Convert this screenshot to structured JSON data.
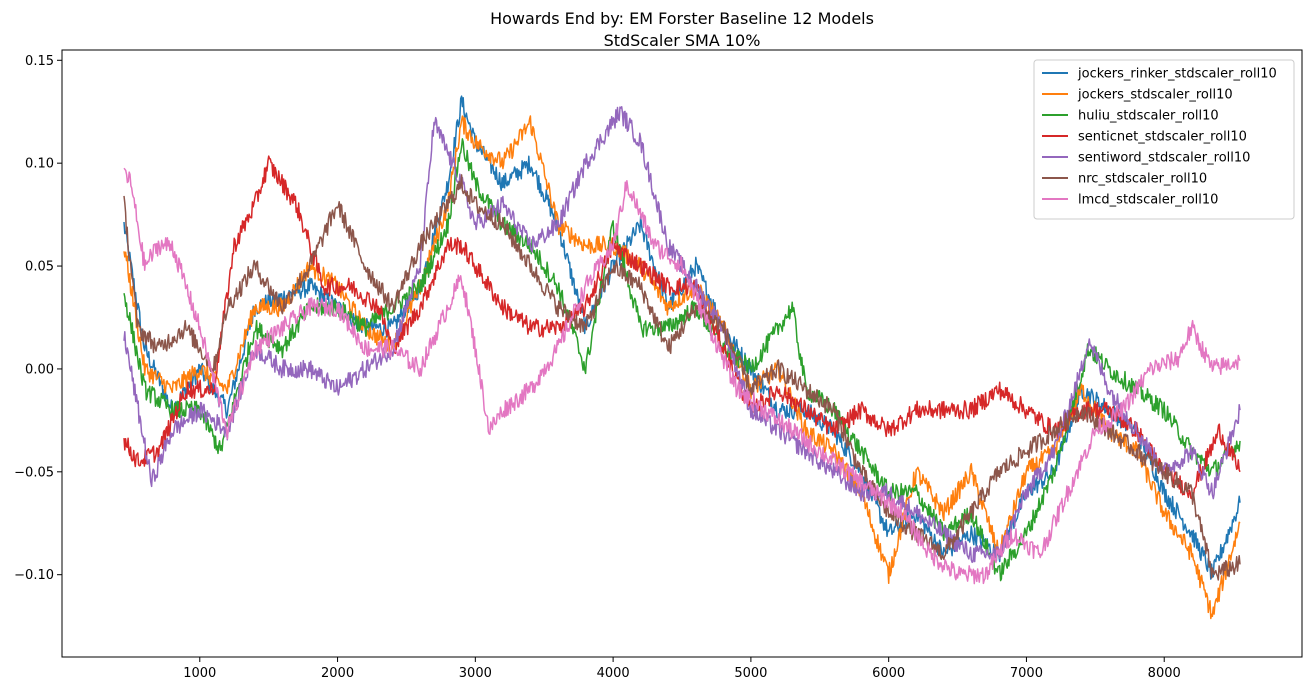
{
  "chart_data": {
    "type": "line",
    "title": "Howards End by: EM Forster Baseline 12 Models",
    "subtitle": "StdScaler SMA 10%",
    "xlabel": "",
    "ylabel": "",
    "xlim": [
      0,
      9000
    ],
    "ylim": [
      -0.14,
      0.155
    ],
    "x_ticks": [
      1000,
      2000,
      3000,
      4000,
      5000,
      6000,
      7000,
      8000
    ],
    "x_tick_labels": [
      "1000",
      "2000",
      "3000",
      "4000",
      "5000",
      "6000",
      "7000",
      "8000"
    ],
    "y_ticks": [
      -0.1,
      -0.05,
      0.0,
      0.05,
      0.1,
      0.15
    ],
    "y_tick_labels": [
      "−0.10",
      "−0.05",
      "0.00",
      "0.05",
      "0.10",
      "0.15"
    ],
    "grid": false,
    "legend_position": "top-right",
    "series": [
      {
        "name": "jockers_rinker_stdscaler_roll10",
        "color": "#1f77b4",
        "x": [
          450,
          600,
          800,
          1000,
          1200,
          1400,
          1600,
          1800,
          2000,
          2200,
          2400,
          2600,
          2800,
          2900,
          3000,
          3200,
          3400,
          3600,
          3800,
          4000,
          4200,
          4400,
          4600,
          4800,
          5000,
          5200,
          5400,
          5600,
          5800,
          6000,
          6200,
          6400,
          6600,
          6800,
          7000,
          7200,
          7400,
          7600,
          7800,
          8000,
          8200,
          8350,
          8550
        ],
        "y": [
          0.07,
          0.01,
          -0.02,
          0.0,
          -0.02,
          0.03,
          0.035,
          0.04,
          0.03,
          0.02,
          0.02,
          0.04,
          0.09,
          0.13,
          0.11,
          0.09,
          0.1,
          0.07,
          0.02,
          0.05,
          0.07,
          0.03,
          0.05,
          0.02,
          0.0,
          -0.02,
          -0.02,
          -0.03,
          -0.05,
          -0.08,
          -0.07,
          -0.09,
          -0.08,
          -0.09,
          -0.06,
          -0.05,
          -0.01,
          -0.02,
          -0.03,
          -0.06,
          -0.08,
          -0.1,
          -0.065
        ]
      },
      {
        "name": "jockers_stdscaler_roll10",
        "color": "#ff7f0e",
        "x": [
          450,
          600,
          800,
          1000,
          1200,
          1400,
          1600,
          1800,
          2000,
          2200,
          2400,
          2600,
          2800,
          2900,
          3000,
          3200,
          3400,
          3600,
          3800,
          4000,
          4200,
          4400,
          4600,
          4800,
          5000,
          5200,
          5400,
          5600,
          5800,
          6000,
          6200,
          6400,
          6600,
          6800,
          7000,
          7200,
          7400,
          7600,
          7800,
          8000,
          8200,
          8350,
          8550
        ],
        "y": [
          0.06,
          0.0,
          -0.01,
          0.0,
          -0.01,
          0.03,
          0.03,
          0.05,
          0.04,
          0.02,
          0.01,
          0.04,
          0.08,
          0.12,
          0.11,
          0.1,
          0.12,
          0.07,
          0.06,
          0.06,
          0.05,
          0.03,
          0.04,
          0.02,
          -0.01,
          0.0,
          -0.03,
          -0.04,
          -0.06,
          -0.1,
          -0.05,
          -0.07,
          -0.05,
          -0.09,
          -0.05,
          -0.04,
          -0.01,
          -0.03,
          -0.04,
          -0.07,
          -0.09,
          -0.12,
          -0.075
        ]
      },
      {
        "name": "huliu_stdscaler_roll10",
        "color": "#2ca02c",
        "x": [
          450,
          600,
          800,
          1000,
          1150,
          1400,
          1600,
          1800,
          2000,
          2200,
          2400,
          2600,
          2800,
          2900,
          3000,
          3200,
          3400,
          3600,
          3800,
          4000,
          4200,
          4400,
          4600,
          4800,
          5000,
          5300,
          5400,
          5600,
          5800,
          6000,
          6200,
          6400,
          6600,
          6800,
          7000,
          7200,
          7450,
          7600,
          7800,
          8000,
          8200,
          8350,
          8550
        ],
        "y": [
          0.037,
          -0.01,
          -0.02,
          -0.02,
          -0.04,
          0.02,
          0.01,
          0.03,
          0.03,
          0.02,
          0.03,
          0.04,
          0.07,
          0.11,
          0.09,
          0.07,
          0.06,
          0.04,
          0.0,
          0.07,
          0.02,
          0.02,
          0.03,
          0.01,
          0.0,
          0.03,
          -0.01,
          -0.02,
          -0.04,
          -0.06,
          -0.06,
          -0.08,
          -0.07,
          -0.1,
          -0.08,
          -0.05,
          0.01,
          0.0,
          -0.01,
          -0.02,
          -0.04,
          -0.05,
          -0.035
        ]
      },
      {
        "name": "senticnet_stdscaler_roll10",
        "color": "#d62728",
        "x": [
          450,
          550,
          700,
          900,
          1100,
          1250,
          1400,
          1500,
          1700,
          1900,
          2100,
          2300,
          2400,
          2600,
          2800,
          2900,
          3000,
          3200,
          3400,
          3600,
          3800,
          4000,
          4200,
          4400,
          4600,
          4800,
          5000,
          5200,
          5400,
          5600,
          5800,
          6000,
          6200,
          6400,
          6600,
          6800,
          7000,
          7200,
          7400,
          7600,
          7800,
          8000,
          8200,
          8400,
          8550
        ],
        "y": [
          -0.035,
          -0.045,
          -0.04,
          -0.01,
          -0.01,
          0.06,
          0.08,
          0.1,
          0.08,
          0.04,
          0.04,
          0.03,
          0.01,
          0.03,
          0.06,
          0.06,
          0.05,
          0.03,
          0.02,
          0.02,
          0.03,
          0.06,
          0.05,
          0.04,
          0.04,
          0.01,
          -0.02,
          -0.01,
          -0.02,
          -0.03,
          -0.02,
          -0.03,
          -0.02,
          -0.02,
          -0.02,
          -0.01,
          -0.02,
          -0.03,
          -0.02,
          -0.02,
          -0.03,
          -0.05,
          -0.06,
          -0.03,
          -0.05
        ]
      },
      {
        "name": "sentiword_stdscaler_roll10",
        "color": "#9467bd",
        "x": [
          450,
          650,
          800,
          1000,
          1200,
          1400,
          1600,
          1800,
          2000,
          2200,
          2400,
          2600,
          2700,
          2900,
          3000,
          3200,
          3400,
          3600,
          3800,
          3900,
          4050,
          4200,
          4400,
          4600,
          4800,
          5000,
          5200,
          5400,
          5600,
          5800,
          6000,
          6200,
          6400,
          6600,
          6800,
          7000,
          7200,
          7400,
          7450,
          7600,
          7800,
          8000,
          8200,
          8350,
          8550
        ],
        "y": [
          0.017,
          -0.055,
          -0.03,
          -0.02,
          -0.03,
          0.01,
          0.0,
          0.0,
          -0.01,
          0.0,
          0.01,
          0.05,
          0.12,
          0.09,
          0.07,
          0.08,
          0.06,
          0.07,
          0.1,
          0.11,
          0.125,
          0.11,
          0.06,
          0.04,
          0.02,
          -0.02,
          -0.03,
          -0.04,
          -0.05,
          -0.06,
          -0.06,
          -0.07,
          -0.08,
          -0.09,
          -0.09,
          -0.06,
          -0.04,
          0.0,
          0.015,
          -0.01,
          -0.03,
          -0.05,
          -0.04,
          -0.06,
          -0.02
        ]
      },
      {
        "name": "nrc_stdscaler_roll10",
        "color": "#8c564b",
        "x": [
          450,
          550,
          700,
          900,
          1100,
          1200,
          1400,
          1600,
          1800,
          2000,
          2200,
          2400,
          2600,
          2800,
          2900,
          3000,
          3200,
          3400,
          3600,
          3800,
          4000,
          4200,
          4400,
          4600,
          4800,
          5000,
          5200,
          5400,
          5600,
          5800,
          6000,
          6200,
          6400,
          6600,
          6800,
          7000,
          7200,
          7400,
          7600,
          7800,
          8000,
          8200,
          8350,
          8550
        ],
        "y": [
          0.08,
          0.02,
          0.01,
          0.02,
          0.0,
          0.03,
          0.05,
          0.03,
          0.05,
          0.08,
          0.05,
          0.03,
          0.06,
          0.08,
          0.09,
          0.08,
          0.07,
          0.05,
          0.03,
          0.02,
          0.05,
          0.04,
          0.01,
          0.03,
          0.02,
          -0.01,
          0.0,
          -0.01,
          -0.02,
          -0.05,
          -0.07,
          -0.08,
          -0.09,
          -0.07,
          -0.05,
          -0.04,
          -0.03,
          -0.02,
          -0.03,
          -0.04,
          -0.05,
          -0.06,
          -0.1,
          -0.095
        ]
      },
      {
        "name": "lmcd_stdscaler_roll10",
        "color": "#e377c2",
        "x": [
          450,
          500,
          600,
          700,
          800,
          1000,
          1200,
          1400,
          1600,
          1800,
          2000,
          2200,
          2400,
          2600,
          2800,
          2900,
          3000,
          3100,
          3200,
          3400,
          3600,
          3800,
          4000,
          4100,
          4300,
          4500,
          4700,
          4900,
          5100,
          5300,
          5500,
          5700,
          5900,
          6100,
          6300,
          6500,
          6700,
          6900,
          7100,
          7300,
          7500,
          7700,
          7900,
          8100,
          8200,
          8350,
          8550
        ],
        "y": [
          0.097,
          0.09,
          0.05,
          0.06,
          0.06,
          0.02,
          -0.03,
          0.01,
          0.02,
          0.03,
          0.03,
          0.01,
          0.01,
          0.0,
          0.03,
          0.045,
          0.01,
          -0.03,
          -0.02,
          -0.01,
          0.01,
          0.04,
          0.06,
          0.09,
          0.06,
          0.05,
          0.02,
          -0.01,
          -0.02,
          -0.03,
          -0.04,
          -0.05,
          -0.06,
          -0.07,
          -0.09,
          -0.1,
          -0.1,
          -0.08,
          -0.09,
          -0.06,
          -0.03,
          -0.02,
          0.0,
          0.005,
          0.02,
          0.0,
          0.004
        ]
      }
    ]
  }
}
